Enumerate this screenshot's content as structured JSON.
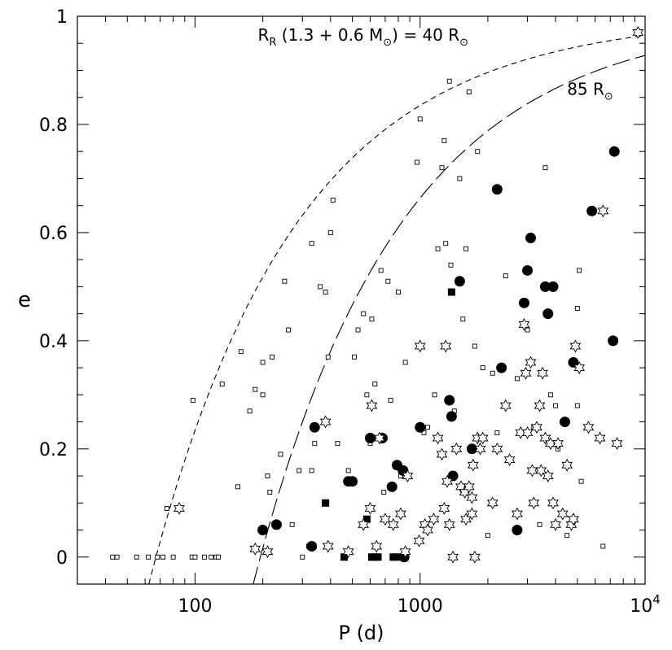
{
  "chart_data": {
    "type": "scatter",
    "xlabel": "P (d)",
    "ylabel": "e",
    "xscale": "log",
    "xlim": [
      30,
      10000
    ],
    "ylim": [
      -0.05,
      1.0
    ],
    "xticks": [
      {
        "value": 100,
        "label": "100"
      },
      {
        "value": 1000,
        "label": "1000"
      },
      {
        "value": 10000,
        "label": "10",
        "sup": "4"
      }
    ],
    "yticks": [
      {
        "value": 0,
        "label": "0"
      },
      {
        "value": 0.2,
        "label": "0.2"
      },
      {
        "value": 0.4,
        "label": "0.4"
      },
      {
        "value": 0.6,
        "label": "0.6"
      },
      {
        "value": 0.8,
        "label": "0.8"
      },
      {
        "value": 1,
        "label": "1"
      }
    ],
    "annotations": [
      {
        "text_main": "R",
        "text_sub": "R",
        "text_rest": " (1.3 + 0.6 M",
        "sun": "⊙",
        "text_end": ") = 40 R",
        "sun2": "⊙",
        "at": [
          190,
          0.955
        ]
      },
      {
        "text_main": "85 R",
        "sun": "⊙",
        "at": [
          4500,
          0.855
        ]
      }
    ],
    "curves": [
      {
        "style": "short-dash",
        "P0": 67,
        "P_inf": 1,
        "R": 40,
        "samples": [
          67,
          70,
          75,
          80,
          90,
          100,
          120,
          150,
          200,
          300,
          500,
          800,
          1500,
          3000,
          6000,
          10000
        ]
      },
      {
        "style": "long-dash",
        "P0": 195,
        "R": 85,
        "samples": [
          195,
          205,
          220,
          250,
          300,
          400,
          600,
          900,
          1500,
          2500,
          4000,
          7000,
          10000
        ]
      }
    ],
    "series": [
      {
        "marker": "open-square",
        "points": [
          [
            43,
            0
          ],
          [
            45,
            0
          ],
          [
            55,
            0
          ],
          [
            62,
            0
          ],
          [
            68,
            0
          ],
          [
            72,
            0
          ],
          [
            80,
            0
          ],
          [
            97,
            0
          ],
          [
            100,
            0
          ],
          [
            110,
            0
          ],
          [
            118,
            0
          ],
          [
            124,
            0
          ],
          [
            127,
            0
          ],
          [
            75,
            0.09
          ],
          [
            98,
            0.29
          ],
          [
            132,
            0.32
          ],
          [
            155,
            0.13
          ],
          [
            160,
            0.38
          ],
          [
            175,
            0.27
          ],
          [
            185,
            0.31
          ],
          [
            200,
            0.3
          ],
          [
            200,
            0.36
          ],
          [
            210,
            0.15
          ],
          [
            215,
            0.12
          ],
          [
            220,
            0.37
          ],
          [
            240,
            0.19
          ],
          [
            250,
            0.51
          ],
          [
            260,
            0.42
          ],
          [
            270,
            0.06
          ],
          [
            290,
            0.16
          ],
          [
            300,
            0.0
          ],
          [
            320,
            0.02
          ],
          [
            330,
            0.58
          ],
          [
            330,
            0.16
          ],
          [
            340,
            0.21
          ],
          [
            360,
            0.5
          ],
          [
            380,
            0.49
          ],
          [
            390,
            0.37
          ],
          [
            400,
            0.6
          ],
          [
            410,
            0.66
          ],
          [
            430,
            0.21
          ],
          [
            480,
            0.16
          ],
          [
            510,
            0.37
          ],
          [
            530,
            0.42
          ],
          [
            560,
            0.45
          ],
          [
            580,
            0.3
          ],
          [
            600,
            0.21
          ],
          [
            610,
            0.44
          ],
          [
            630,
            0.32
          ],
          [
            670,
            0.53
          ],
          [
            690,
            0.12
          ],
          [
            720,
            0.51
          ],
          [
            740,
            0.29
          ],
          [
            800,
            0.49
          ],
          [
            820,
            0.15
          ],
          [
            860,
            0.36
          ],
          [
            970,
            0.73
          ],
          [
            1000,
            0.81
          ],
          [
            1040,
            0.23
          ],
          [
            1080,
            0.24
          ],
          [
            1160,
            0.3
          ],
          [
            1200,
            0.57
          ],
          [
            1250,
            0.72
          ],
          [
            1280,
            0.77
          ],
          [
            1300,
            0.58
          ],
          [
            1350,
            0.88
          ],
          [
            1370,
            0.54
          ],
          [
            1420,
            0.27
          ],
          [
            1500,
            0.7
          ],
          [
            1550,
            0.44
          ],
          [
            1600,
            0.57
          ],
          [
            1650,
            0.86
          ],
          [
            1750,
            0.39
          ],
          [
            1800,
            0.75
          ],
          [
            1900,
            0.35
          ],
          [
            2000,
            0.04
          ],
          [
            2100,
            0.34
          ],
          [
            2200,
            0.23
          ],
          [
            2400,
            0.52
          ],
          [
            2500,
            0.18
          ],
          [
            2700,
            0.33
          ],
          [
            3000,
            0.42
          ],
          [
            3200,
            0.24
          ],
          [
            3400,
            0.06
          ],
          [
            3600,
            0.72
          ],
          [
            3800,
            0.3
          ],
          [
            4000,
            0.28
          ],
          [
            4100,
            0.2
          ],
          [
            4500,
            0.04
          ],
          [
            5000,
            0.46
          ],
          [
            5100,
            0.53
          ],
          [
            5200,
            0.14
          ],
          [
            6500,
            0.02
          ],
          [
            5000,
            0.28
          ]
        ]
      },
      {
        "marker": "filled-circle",
        "points": [
          [
            200,
            0.05
          ],
          [
            230,
            0.06
          ],
          [
            330,
            0.02
          ],
          [
            340,
            0.24
          ],
          [
            480,
            0.14
          ],
          [
            500,
            0.14
          ],
          [
            600,
            0.22
          ],
          [
            680,
            0.22
          ],
          [
            750,
            0.13
          ],
          [
            790,
            0.17
          ],
          [
            840,
            0.16
          ],
          [
            1000,
            0.24
          ],
          [
            1350,
            0.29
          ],
          [
            1380,
            0.26
          ],
          [
            1400,
            0.15
          ],
          [
            1500,
            0.51
          ],
          [
            1700,
            0.2
          ],
          [
            2200,
            0.68
          ],
          [
            2300,
            0.35
          ],
          [
            2900,
            0.47
          ],
          [
            3000,
            0.53
          ],
          [
            3100,
            0.59
          ],
          [
            3600,
            0.5
          ],
          [
            3700,
            0.45
          ],
          [
            3900,
            0.5
          ],
          [
            4400,
            0.25
          ],
          [
            4800,
            0.36
          ],
          [
            5800,
            0.64
          ],
          [
            7300,
            0.75
          ],
          [
            7200,
            0.4
          ],
          [
            2700,
            0.05
          ],
          [
            850,
            0
          ]
        ]
      },
      {
        "marker": "filled-square",
        "points": [
          [
            380,
            0.1
          ],
          [
            460,
            0
          ],
          [
            580,
            0.07
          ],
          [
            610,
            0
          ],
          [
            630,
            0
          ],
          [
            650,
            0
          ],
          [
            760,
            0
          ],
          [
            790,
            0
          ],
          [
            1380,
            0.49
          ]
        ]
      },
      {
        "marker": "open-star",
        "points": [
          [
            85,
            0.09
          ],
          [
            185,
            0.015
          ],
          [
            210,
            0.01
          ],
          [
            380,
            0.25
          ],
          [
            390,
            0.02
          ],
          [
            480,
            0.01
          ],
          [
            560,
            0.06
          ],
          [
            600,
            0.09
          ],
          [
            610,
            0.28
          ],
          [
            640,
            0.02
          ],
          [
            660,
            0.22
          ],
          [
            700,
            0.07
          ],
          [
            760,
            0.06
          ],
          [
            820,
            0.08
          ],
          [
            860,
            0.01
          ],
          [
            880,
            0.15
          ],
          [
            990,
            0.03
          ],
          [
            1000,
            0.39
          ],
          [
            1050,
            0.06
          ],
          [
            1080,
            0.05
          ],
          [
            1150,
            0.07
          ],
          [
            1200,
            0.22
          ],
          [
            1250,
            0.19
          ],
          [
            1280,
            0.09
          ],
          [
            1300,
            0.39
          ],
          [
            1320,
            0.14
          ],
          [
            1350,
            0.06
          ],
          [
            1400,
            0.0
          ],
          [
            1450,
            0.2
          ],
          [
            1520,
            0.13
          ],
          [
            1580,
            0.12
          ],
          [
            1600,
            0.07
          ],
          [
            1650,
            0.13
          ],
          [
            1700,
            0.08
          ],
          [
            1700,
            0.11
          ],
          [
            1720,
            0.17
          ],
          [
            1750,
            0.0
          ],
          [
            1800,
            0.22
          ],
          [
            1850,
            0.2
          ],
          [
            1900,
            0.22
          ],
          [
            2100,
            0.1
          ],
          [
            2200,
            0.2
          ],
          [
            2400,
            0.28
          ],
          [
            2500,
            0.18
          ],
          [
            2700,
            0.08
          ],
          [
            2800,
            0.23
          ],
          [
            2900,
            0.43
          ],
          [
            2950,
            0.34
          ],
          [
            3000,
            0.23
          ],
          [
            3100,
            0.36
          ],
          [
            3150,
            0.16
          ],
          [
            3200,
            0.1
          ],
          [
            3300,
            0.24
          ],
          [
            3400,
            0.28
          ],
          [
            3450,
            0.16
          ],
          [
            3500,
            0.34
          ],
          [
            3600,
            0.22
          ],
          [
            3700,
            0.15
          ],
          [
            3800,
            0.21
          ],
          [
            3900,
            0.1
          ],
          [
            4000,
            0.06
          ],
          [
            4100,
            0.21
          ],
          [
            4300,
            0.08
          ],
          [
            4500,
            0.17
          ],
          [
            4700,
            0.06
          ],
          [
            4800,
            0.07
          ],
          [
            4900,
            0.39
          ],
          [
            5100,
            0.35
          ],
          [
            5600,
            0.24
          ],
          [
            6300,
            0.22
          ],
          [
            6500,
            0.64
          ],
          [
            7500,
            0.21
          ],
          [
            9300,
            0.97
          ]
        ]
      }
    ]
  }
}
